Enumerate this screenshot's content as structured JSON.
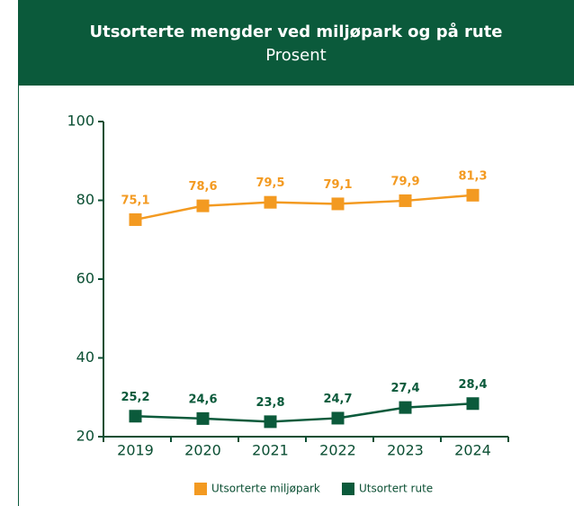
{
  "chart_data": {
    "type": "line",
    "title": "Utsorterte mengder ved miljøpark og på rute",
    "subtitle": "Prosent",
    "categories": [
      "2019",
      "2020",
      "2021",
      "2022",
      "2023",
      "2024"
    ],
    "series": [
      {
        "name": "Utsorterte miljøpark",
        "color": "#f39a21",
        "values": [
          75.1,
          78.6,
          79.5,
          79.1,
          79.9,
          81.3
        ],
        "value_labels": [
          "75,1",
          "78,6",
          "79,5",
          "79,1",
          "79,9",
          "81,3"
        ]
      },
      {
        "name": "Utsortert rute",
        "color": "#0b5a3b",
        "values": [
          25.2,
          24.6,
          23.8,
          24.7,
          27.4,
          28.4
        ],
        "value_labels": [
          "25,2",
          "24,6",
          "23,8",
          "24,7",
          "27,4",
          "28,4"
        ]
      }
    ],
    "ylim": [
      20,
      100
    ],
    "yticks": [
      20,
      40,
      60,
      80,
      100
    ],
    "legend": "bottom"
  }
}
